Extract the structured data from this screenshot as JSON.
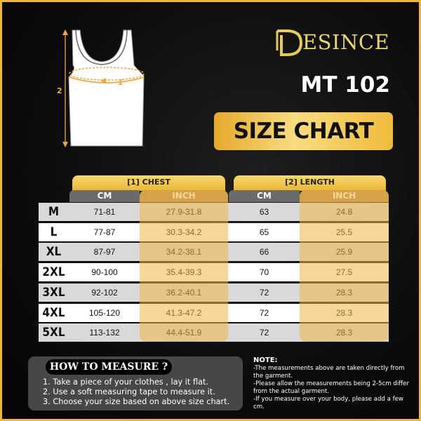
{
  "brand": {
    "logo_text": "ESINCE",
    "logo_full": "DESINCE",
    "color": "#ecd56a"
  },
  "model": "MT 102",
  "title": "SIZE CHART",
  "diagram": {
    "chest_label": "1",
    "length_label": "2"
  },
  "table": {
    "groups": [
      "[1] CHEST",
      "[2] LENGTH"
    ],
    "subheaders": [
      "CM",
      "INCH",
      "CM",
      "INCH"
    ],
    "rows": [
      {
        "size": "M",
        "chest_cm": "71-81",
        "chest_inch": "27.9-31.8",
        "length_cm": "63",
        "length_inch": "24.8"
      },
      {
        "size": "L",
        "chest_cm": "77-87",
        "chest_inch": "30.3-34.2",
        "length_cm": "65",
        "length_inch": "25.5"
      },
      {
        "size": "XL",
        "chest_cm": "87-97",
        "chest_inch": "34.2-38.1",
        "length_cm": "66",
        "length_inch": "25.9"
      },
      {
        "size": "2XL",
        "chest_cm": "90-100",
        "chest_inch": "35.4-39.3",
        "length_cm": "70",
        "length_inch": "27.5"
      },
      {
        "size": "3XL",
        "chest_cm": "92-102",
        "chest_inch": "36.2-40.1",
        "length_cm": "72",
        "length_inch": "28.3"
      },
      {
        "size": "4XL",
        "chest_cm": "105-120",
        "chest_inch": "41.3-47.2",
        "length_cm": "72",
        "length_inch": "28.3"
      },
      {
        "size": "5XL",
        "chest_cm": "113-132",
        "chest_inch": "44.4-51.9",
        "length_cm": "72",
        "length_inch": "28.3"
      }
    ]
  },
  "how_to": {
    "title": "HOW TO MEASURE ?",
    "steps": [
      "1. Take a piece of your clothes , lay it flat.",
      "2. Use a soft measuring tape to measure it.",
      "3. Choose your size based on above size chart."
    ]
  },
  "note": {
    "title": "NOTE:",
    "lines": [
      "-The measurements above are taken directly from the garment.",
      "-Please allow the measurements being 2-5cm differ from the actual garment.",
      "-If you measure over your body, please add a few cm."
    ]
  },
  "colors": {
    "gold": "#f0b830",
    "header_gray": "#6b6b6b",
    "header_inch": "#b58d4f"
  }
}
